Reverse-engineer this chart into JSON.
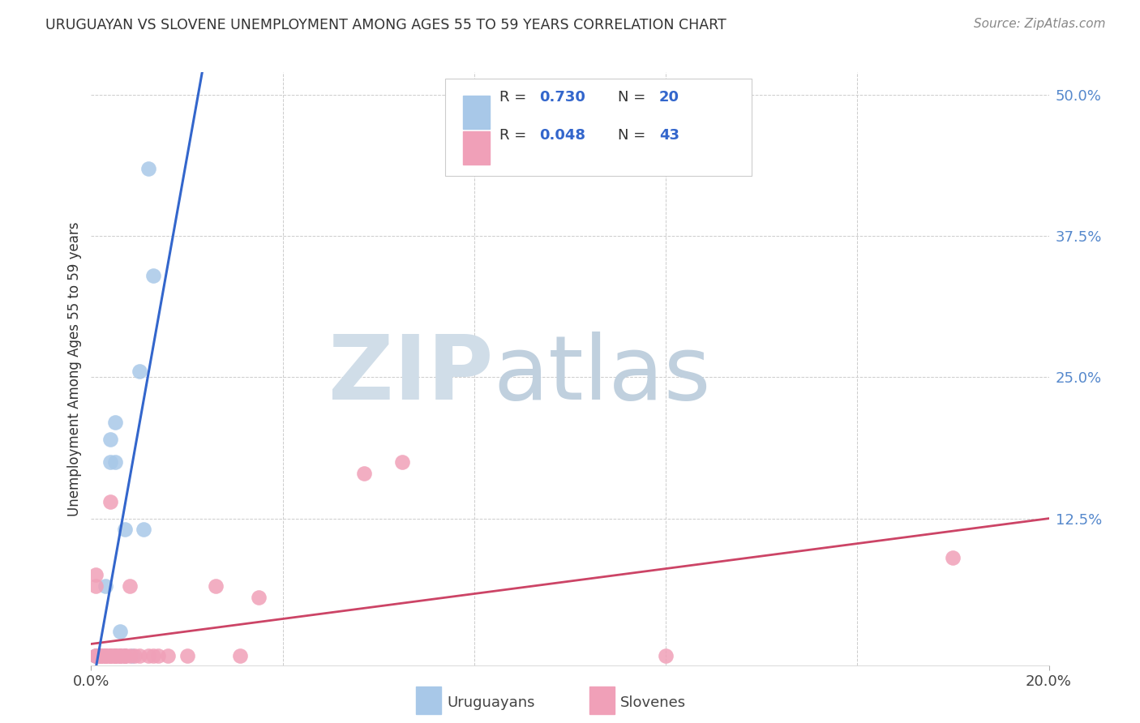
{
  "title": "URUGUAYAN VS SLOVENE UNEMPLOYMENT AMONG AGES 55 TO 59 YEARS CORRELATION CHART",
  "source": "Source: ZipAtlas.com",
  "ylabel": "Unemployment Among Ages 55 to 59 years",
  "xlim": [
    0.0,
    0.2
  ],
  "ylim": [
    -0.005,
    0.52
  ],
  "ytick_right_labels": [
    "50.0%",
    "37.5%",
    "25.0%",
    "12.5%",
    ""
  ],
  "ytick_right_values": [
    0.5,
    0.375,
    0.25,
    0.125,
    0.0
  ],
  "uruguayan_R": 0.73,
  "uruguayan_N": 20,
  "slovene_R": 0.048,
  "slovene_N": 43,
  "uruguayan_color": "#a8c8e8",
  "slovene_color": "#f0a0b8",
  "uruguayan_line_color": "#3366cc",
  "slovene_line_color": "#cc4466",
  "dashed_line_color": "#b0c4d8",
  "legend_text_color": "#3366cc",
  "background_color": "#ffffff",
  "watermark_color": "#d0dde8",
  "uruguayan_x": [
    0.001,
    0.001,
    0.002,
    0.002,
    0.003,
    0.003,
    0.004,
    0.004,
    0.005,
    0.005,
    0.005,
    0.006,
    0.006,
    0.007,
    0.007,
    0.0085,
    0.01,
    0.011,
    0.012,
    0.013
  ],
  "uruguayan_y": [
    0.003,
    0.003,
    0.003,
    0.003,
    0.003,
    0.065,
    0.175,
    0.195,
    0.175,
    0.21,
    0.003,
    0.003,
    0.025,
    0.003,
    0.115,
    0.003,
    0.255,
    0.115,
    0.435,
    0.34
  ],
  "slovene_x": [
    0.001,
    0.001,
    0.001,
    0.001,
    0.002,
    0.002,
    0.002,
    0.002,
    0.003,
    0.003,
    0.003,
    0.003,
    0.004,
    0.004,
    0.004,
    0.004,
    0.004,
    0.005,
    0.005,
    0.005,
    0.005,
    0.006,
    0.006,
    0.006,
    0.007,
    0.007,
    0.007,
    0.008,
    0.008,
    0.009,
    0.01,
    0.012,
    0.013,
    0.014,
    0.016,
    0.02,
    0.026,
    0.031,
    0.035,
    0.057,
    0.065,
    0.12,
    0.18
  ],
  "slovene_y": [
    0.003,
    0.003,
    0.065,
    0.075,
    0.003,
    0.003,
    0.003,
    0.003,
    0.003,
    0.003,
    0.003,
    0.003,
    0.003,
    0.003,
    0.003,
    0.003,
    0.14,
    0.003,
    0.003,
    0.003,
    0.003,
    0.003,
    0.003,
    0.003,
    0.003,
    0.003,
    0.003,
    0.003,
    0.065,
    0.003,
    0.003,
    0.003,
    0.003,
    0.003,
    0.003,
    0.003,
    0.065,
    0.003,
    0.055,
    0.165,
    0.175,
    0.003,
    0.09
  ]
}
